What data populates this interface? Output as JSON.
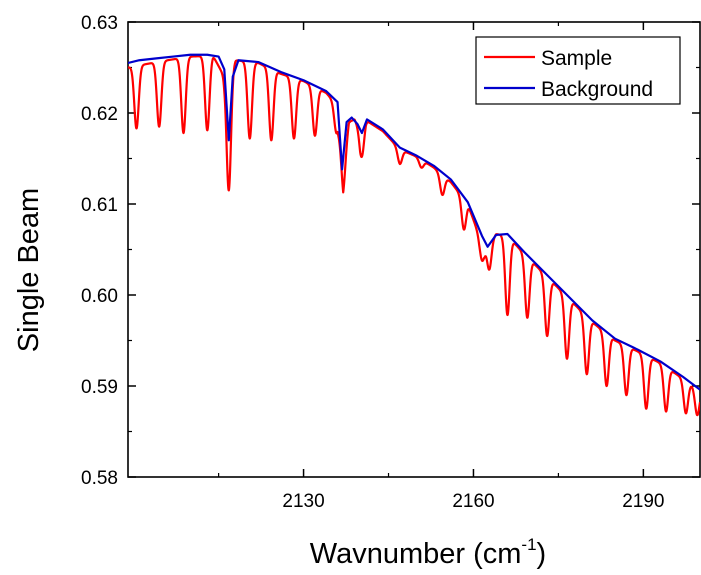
{
  "chart_data": {
    "type": "line",
    "xlabel": "Wavnumber  (cm",
    "xlabel_superscript": "-1",
    "xlabel_suffix": ")",
    "ylabel": "Single Beam",
    "xlim": [
      2099,
      2200
    ],
    "ylim": [
      0.58,
      0.63
    ],
    "x_ticks": [
      2130,
      2160,
      2190
    ],
    "x_tick_labels": [
      "2130",
      "2160",
      "2190"
    ],
    "y_ticks": [
      0.58,
      0.59,
      0.6,
      0.61,
      0.62,
      0.63
    ],
    "y_tick_labels": [
      "0.58",
      "0.59",
      "0.60",
      "0.61",
      "0.62",
      "0.63"
    ],
    "grid": false,
    "legend_position": "top-right",
    "series": [
      {
        "name": "Sample",
        "color": "#ff0000",
        "background_line": [
          [
            2099,
            0.625
          ],
          [
            2105,
            0.6257
          ],
          [
            2110,
            0.6262
          ],
          [
            2114,
            0.6263
          ],
          [
            2116,
            0.624
          ],
          [
            2117,
            0.625
          ],
          [
            2118,
            0.6258
          ],
          [
            2122,
            0.6255
          ],
          [
            2126,
            0.6243
          ],
          [
            2130,
            0.6235
          ],
          [
            2134,
            0.6222
          ],
          [
            2136,
            0.6208
          ],
          [
            2137,
            0.6142
          ],
          [
            2138,
            0.619
          ],
          [
            2139,
            0.6193
          ],
          [
            2140,
            0.618
          ],
          [
            2141,
            0.6192
          ],
          [
            2144,
            0.618
          ],
          [
            2147,
            0.616
          ],
          [
            2150,
            0.6152
          ],
          [
            2153,
            0.614
          ],
          [
            2156,
            0.6124
          ],
          [
            2159,
            0.61
          ],
          [
            2161,
            0.6065
          ],
          [
            2162,
            0.6055
          ],
          [
            2164,
            0.6067
          ],
          [
            2166,
            0.6065
          ],
          [
            2169,
            0.6045
          ],
          [
            2173,
            0.602
          ],
          [
            2177,
            0.5995
          ],
          [
            2181,
            0.597
          ],
          [
            2185,
            0.595
          ],
          [
            2189,
            0.5938
          ],
          [
            2193,
            0.5925
          ],
          [
            2197,
            0.5908
          ],
          [
            2200,
            0.5895
          ]
        ],
        "minima": [
          [
            2100.5,
            0.6183
          ],
          [
            2104.5,
            0.6185
          ],
          [
            2108.8,
            0.6178
          ],
          [
            2113,
            0.6181
          ],
          [
            2116.8,
            0.6115
          ],
          [
            2120.5,
            0.6172
          ],
          [
            2124.3,
            0.617
          ],
          [
            2128.3,
            0.6172
          ],
          [
            2132,
            0.6175
          ],
          [
            2135.8,
            0.6178
          ],
          [
            2137,
            0.6113
          ],
          [
            2140.3,
            0.6152
          ],
          [
            2147,
            0.6144
          ],
          [
            2150.8,
            0.614
          ],
          [
            2154.5,
            0.611
          ],
          [
            2158.3,
            0.6072
          ],
          [
            2161.5,
            0.6038
          ],
          [
            2162.8,
            0.6028
          ],
          [
            2166,
            0.5978
          ],
          [
            2169.5,
            0.5975
          ],
          [
            2173,
            0.5955
          ],
          [
            2176.5,
            0.593
          ],
          [
            2180,
            0.5913
          ],
          [
            2183.5,
            0.59
          ],
          [
            2187,
            0.589
          ],
          [
            2190.5,
            0.5875
          ],
          [
            2194,
            0.5872
          ],
          [
            2197.5,
            0.587
          ],
          [
            2199.5,
            0.5868
          ]
        ],
        "dip_width": 0.55
      },
      {
        "name": "Background",
        "color": "#0000cc",
        "values": [
          [
            2099,
            0.6255
          ],
          [
            2101,
            0.6258
          ],
          [
            2104,
            0.626
          ],
          [
            2107,
            0.6262
          ],
          [
            2110,
            0.6264
          ],
          [
            2113,
            0.6264
          ],
          [
            2115,
            0.6262
          ],
          [
            2116,
            0.6248
          ],
          [
            2116.8,
            0.617
          ],
          [
            2117.5,
            0.624
          ],
          [
            2118.5,
            0.6258
          ],
          [
            2122,
            0.6256
          ],
          [
            2126,
            0.6245
          ],
          [
            2130,
            0.6236
          ],
          [
            2134,
            0.6224
          ],
          [
            2136,
            0.6212
          ],
          [
            2136.8,
            0.6138
          ],
          [
            2137.6,
            0.619
          ],
          [
            2138.5,
            0.6195
          ],
          [
            2139.5,
            0.6188
          ],
          [
            2140.3,
            0.6178
          ],
          [
            2141.2,
            0.6193
          ],
          [
            2144,
            0.6182
          ],
          [
            2147,
            0.6162
          ],
          [
            2150,
            0.6153
          ],
          [
            2153,
            0.6142
          ],
          [
            2156,
            0.6127
          ],
          [
            2159,
            0.6102
          ],
          [
            2161.5,
            0.6065
          ],
          [
            2162.5,
            0.6053
          ],
          [
            2164,
            0.6066
          ],
          [
            2166,
            0.6067
          ],
          [
            2169,
            0.6047
          ],
          [
            2173,
            0.6022
          ],
          [
            2177,
            0.5997
          ],
          [
            2181,
            0.5972
          ],
          [
            2185,
            0.5952
          ],
          [
            2189,
            0.594
          ],
          [
            2193,
            0.5927
          ],
          [
            2197,
            0.591
          ],
          [
            2200,
            0.5896
          ]
        ]
      }
    ]
  }
}
